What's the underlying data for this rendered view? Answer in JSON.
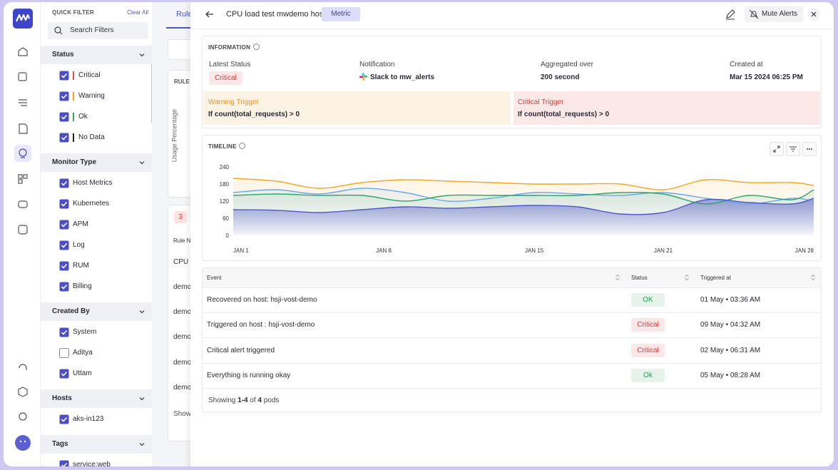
{
  "filters": {
    "title": "QUICK FILTER",
    "clear": "Clear All",
    "search_placeholder": "Search Filters",
    "sections": [
      {
        "name": "Status",
        "items": [
          {
            "label": "Critical",
            "checked": true,
            "color": "#e5484d"
          },
          {
            "label": "Warning",
            "checked": true,
            "color": "#f5a524"
          },
          {
            "label": "Ok",
            "checked": true,
            "color": "#2ea36a"
          },
          {
            "label": "No Data",
            "checked": true,
            "color": "#222222"
          }
        ]
      },
      {
        "name": "Monitor Type",
        "items": [
          {
            "label": "Host Metrics",
            "checked": true
          },
          {
            "label": "Kubernetes",
            "checked": true
          },
          {
            "label": "APM",
            "checked": true
          },
          {
            "label": "Log",
            "checked": true
          },
          {
            "label": "RUM",
            "checked": true
          },
          {
            "label": "Billing",
            "checked": true
          }
        ]
      },
      {
        "name": "Created By",
        "items": [
          {
            "label": "System",
            "checked": true
          },
          {
            "label": "Aditya",
            "checked": false
          },
          {
            "label": "Uttam",
            "checked": true
          }
        ]
      },
      {
        "name": "Hosts",
        "items": [
          {
            "label": "aks-in123",
            "checked": true
          }
        ]
      },
      {
        "name": "Tags",
        "items": [
          {
            "label": "service:web",
            "checked": true
          }
        ]
      }
    ]
  },
  "background": {
    "tab": "Rule",
    "card_label": "RULE",
    "axis_label": "Usage Percentage",
    "count": "3",
    "column": "Rule N",
    "rows": [
      "CPU",
      "demo",
      "demo",
      "demo",
      "demo",
      "demo"
    ],
    "footer": "Show"
  },
  "drawer": {
    "title": "CPU load test mwdemo host",
    "badge": "Metric",
    "mute": "Mute Alerts",
    "information": {
      "heading": "INFORMATION",
      "fields": [
        {
          "label": "Latest Status",
          "value": "Critical",
          "color": "#d93b3b"
        },
        {
          "label": "Notification",
          "value": "Slack to mw_alerts"
        },
        {
          "label": "Aggregated over",
          "value": "200 second"
        },
        {
          "label": "Created at",
          "value": "Mar 15 2024 06:25 PM"
        }
      ]
    },
    "triggers": [
      {
        "title": "Warning Trigger",
        "condition": "If count(total_requests) > 0",
        "color": "#e8941a",
        "background": "#fdf3e4"
      },
      {
        "title": "Critical Trigger",
        "condition": "If count(total_requests) > 0",
        "color": "#d93b3b",
        "background": "#fde8e8"
      }
    ]
  },
  "timeline": {
    "type": "line",
    "title": "TIMELINE",
    "x": [
      1,
      3,
      5,
      7,
      9,
      11,
      13,
      15,
      17,
      19,
      21,
      23,
      25,
      27,
      28
    ],
    "xlim": [
      1,
      28
    ],
    "xticks": [
      {
        "value": 1,
        "label": "JAN 1"
      },
      {
        "value": 8,
        "label": "JAN 8"
      },
      {
        "value": 15,
        "label": "JAN 15"
      },
      {
        "value": 21,
        "label": "JAN 21"
      },
      {
        "value": 28,
        "label": "JAN 28"
      }
    ],
    "ylim": [
      0,
      240
    ],
    "yticks": [
      0,
      60,
      120,
      180,
      240
    ],
    "series": [
      {
        "color": "#f5a524",
        "values": [
          200,
          190,
          165,
          185,
          195,
          190,
          185,
          180,
          180,
          180,
          160,
          195,
          185,
          185,
          175
        ]
      },
      {
        "color": "#6aa8ee",
        "values": [
          150,
          160,
          145,
          165,
          150,
          120,
          130,
          150,
          145,
          140,
          150,
          130,
          110,
          130,
          120
        ]
      },
      {
        "color": "#2ea36a",
        "values": [
          140,
          145,
          140,
          140,
          120,
          140,
          140,
          140,
          140,
          150,
          145,
          110,
          140,
          125,
          160
        ]
      },
      {
        "color": "#4f58c4",
        "values": [
          90,
          88,
          80,
          90,
          100,
          95,
          100,
          105,
          100,
          75,
          80,
          125,
          115,
          110,
          130
        ],
        "area": true
      }
    ]
  },
  "table": {
    "columns": [
      "Event",
      "Status",
      "Triggered at"
    ],
    "rows": [
      {
        "event": "Recovered on host: hsji-vost-demo",
        "status": "OK",
        "status_color": "#2c9a5a",
        "time": "01 May • 03:36 AM"
      },
      {
        "event": "Triggered on host : hsji-vost-demo",
        "status": "Critical",
        "status_color": "#d93b3b",
        "time": "09 May • 04:32 AM"
      },
      {
        "event": "Critical alert triggered",
        "status": "Critical",
        "status_color": "#d93b3b",
        "time": "02 May • 06:31 AM"
      },
      {
        "event": "Everything is running okay",
        "status": "Ok",
        "status_color": "#2c9a5a",
        "time": "05 May • 08:28 AM"
      }
    ],
    "footer": {
      "prefix": "Showing",
      "range": "1-4",
      "of": "of",
      "total": "4",
      "suffix": "pods"
    }
  }
}
